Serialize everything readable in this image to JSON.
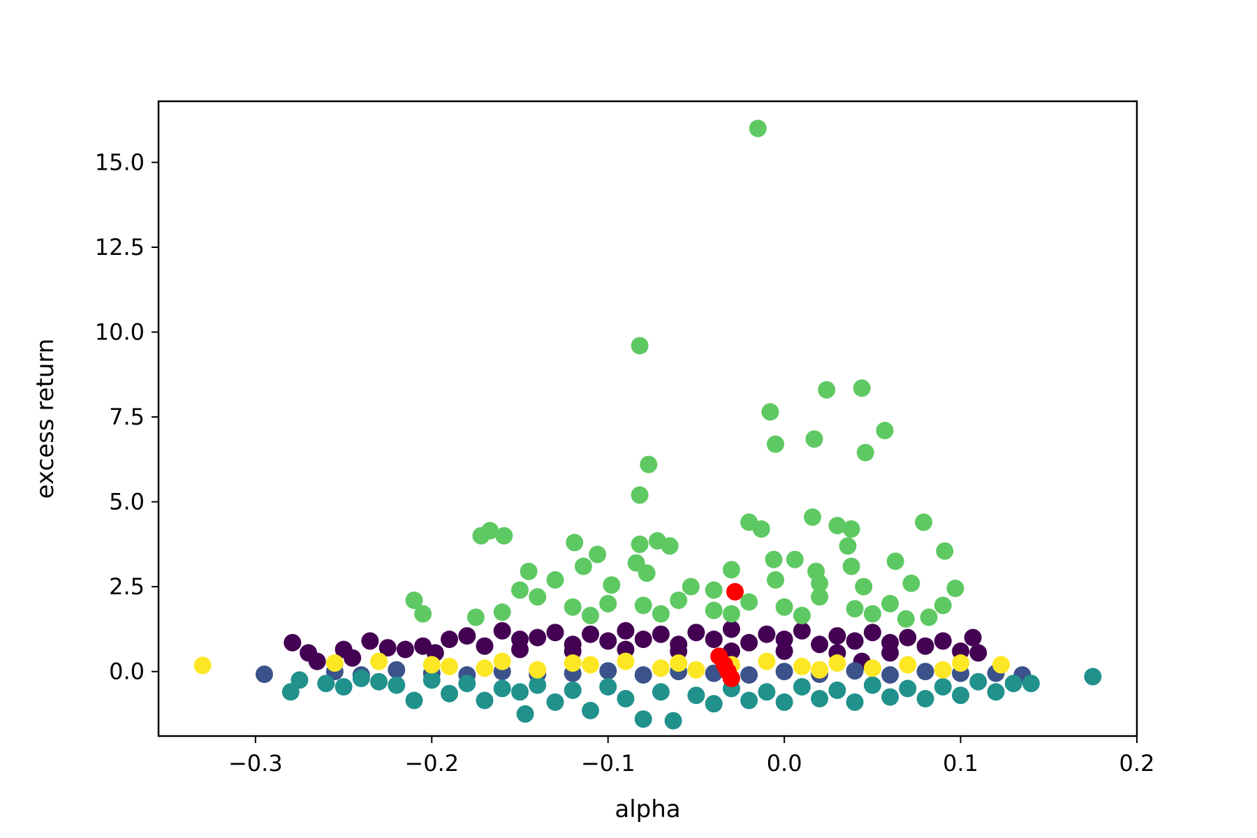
{
  "chart_data": {
    "type": "scatter",
    "title": "",
    "xlabel": "alpha",
    "ylabel": "excess return",
    "xlim": [
      -0.355,
      0.2
    ],
    "ylim": [
      -1.9,
      16.8
    ],
    "xticks": [
      -0.3,
      -0.2,
      -0.1,
      0.0,
      0.1,
      0.2
    ],
    "xtick_labels": [
      "−0.3",
      "−0.2",
      "−0.1",
      "0.0",
      "0.1",
      "0.2"
    ],
    "yticks": [
      0.0,
      2.5,
      5.0,
      7.5,
      10.0,
      12.5,
      15.0
    ],
    "ytick_labels": [
      "0.0",
      "2.5",
      "5.0",
      "7.5",
      "10.0",
      "12.5",
      "15.0"
    ],
    "grid": false,
    "legend": "none",
    "series": [
      {
        "color": "#440154",
        "points": [
          [
            -0.279,
            0.85
          ],
          [
            -0.27,
            0.55
          ],
          [
            -0.265,
            0.3
          ],
          [
            -0.25,
            0.65
          ],
          [
            -0.245,
            0.4
          ],
          [
            -0.235,
            0.9
          ],
          [
            -0.225,
            0.7
          ],
          [
            -0.215,
            0.65
          ],
          [
            -0.205,
            0.75
          ],
          [
            -0.198,
            0.55
          ],
          [
            -0.19,
            0.95
          ],
          [
            -0.18,
            1.05
          ],
          [
            -0.17,
            0.75
          ],
          [
            -0.16,
            1.2
          ],
          [
            -0.15,
            0.95
          ],
          [
            -0.14,
            1.0
          ],
          [
            -0.13,
            1.15
          ],
          [
            -0.12,
            0.8
          ],
          [
            -0.11,
            1.1
          ],
          [
            -0.1,
            0.9
          ],
          [
            -0.09,
            1.2
          ],
          [
            -0.08,
            0.95
          ],
          [
            -0.07,
            1.1
          ],
          [
            -0.06,
            0.8
          ],
          [
            -0.05,
            1.15
          ],
          [
            -0.04,
            0.95
          ],
          [
            -0.03,
            1.25
          ],
          [
            -0.02,
            0.85
          ],
          [
            -0.01,
            1.1
          ],
          [
            0.0,
            0.95
          ],
          [
            0.01,
            1.2
          ],
          [
            0.02,
            0.8
          ],
          [
            0.03,
            1.05
          ],
          [
            0.04,
            0.9
          ],
          [
            0.05,
            1.15
          ],
          [
            0.06,
            0.85
          ],
          [
            0.07,
            1.0
          ],
          [
            0.08,
            0.75
          ],
          [
            0.09,
            0.9
          ],
          [
            0.1,
            0.6
          ],
          [
            0.107,
            1.0
          ],
          [
            0.11,
            0.55
          ],
          [
            0.044,
            0.3
          ],
          [
            -0.15,
            0.65
          ],
          [
            -0.12,
            0.6
          ],
          [
            -0.09,
            0.65
          ],
          [
            -0.06,
            0.6
          ],
          [
            -0.03,
            0.6
          ],
          [
            0.0,
            0.6
          ],
          [
            0.03,
            0.55
          ],
          [
            0.06,
            0.55
          ]
        ]
      },
      {
        "color": "#3b528b",
        "points": [
          [
            -0.295,
            -0.08
          ],
          [
            -0.255,
            0.0
          ],
          [
            -0.24,
            -0.1
          ],
          [
            -0.22,
            0.05
          ],
          [
            -0.2,
            -0.05
          ],
          [
            -0.18,
            -0.1
          ],
          [
            -0.16,
            0.0
          ],
          [
            -0.14,
            -0.08
          ],
          [
            -0.12,
            -0.05
          ],
          [
            -0.1,
            0.02
          ],
          [
            -0.08,
            -0.1
          ],
          [
            -0.06,
            0.0
          ],
          [
            -0.04,
            -0.05
          ],
          [
            -0.02,
            -0.1
          ],
          [
            0.0,
            0.0
          ],
          [
            0.02,
            -0.08
          ],
          [
            0.04,
            0.02
          ],
          [
            0.06,
            -0.1
          ],
          [
            0.08,
            0.0
          ],
          [
            0.1,
            -0.05
          ],
          [
            0.12,
            -0.05
          ],
          [
            0.135,
            -0.1
          ]
        ]
      },
      {
        "color": "#21918c",
        "points": [
          [
            -0.28,
            -0.6
          ],
          [
            -0.275,
            -0.25
          ],
          [
            -0.26,
            -0.35
          ],
          [
            -0.25,
            -0.45
          ],
          [
            -0.24,
            -0.2
          ],
          [
            -0.23,
            -0.3
          ],
          [
            -0.22,
            -0.4
          ],
          [
            -0.21,
            -0.85
          ],
          [
            -0.2,
            -0.25
          ],
          [
            -0.19,
            -0.65
          ],
          [
            -0.18,
            -0.35
          ],
          [
            -0.17,
            -0.85
          ],
          [
            -0.16,
            -0.5
          ],
          [
            -0.15,
            -0.6
          ],
          [
            -0.147,
            -1.25
          ],
          [
            -0.14,
            -0.4
          ],
          [
            -0.13,
            -0.9
          ],
          [
            -0.12,
            -0.55
          ],
          [
            -0.11,
            -1.15
          ],
          [
            -0.1,
            -0.45
          ],
          [
            -0.09,
            -0.8
          ],
          [
            -0.08,
            -1.4
          ],
          [
            -0.07,
            -0.6
          ],
          [
            -0.063,
            -1.45
          ],
          [
            -0.05,
            -0.7
          ],
          [
            -0.04,
            -0.95
          ],
          [
            -0.03,
            -0.5
          ],
          [
            -0.02,
            -0.85
          ],
          [
            -0.01,
            -0.6
          ],
          [
            0.0,
            -0.9
          ],
          [
            0.01,
            -0.45
          ],
          [
            0.02,
            -0.8
          ],
          [
            0.03,
            -0.55
          ],
          [
            0.04,
            -0.9
          ],
          [
            0.05,
            -0.4
          ],
          [
            0.06,
            -0.75
          ],
          [
            0.07,
            -0.5
          ],
          [
            0.08,
            -0.8
          ],
          [
            0.09,
            -0.45
          ],
          [
            0.1,
            -0.7
          ],
          [
            0.11,
            -0.3
          ],
          [
            0.12,
            -0.6
          ],
          [
            0.13,
            -0.35
          ],
          [
            0.14,
            -0.35
          ],
          [
            0.175,
            -0.15
          ]
        ]
      },
      {
        "color": "#5ec962",
        "points": [
          [
            -0.015,
            16.0
          ],
          [
            -0.082,
            9.6
          ],
          [
            0.024,
            8.3
          ],
          [
            0.044,
            8.35
          ],
          [
            -0.008,
            7.65
          ],
          [
            0.057,
            7.1
          ],
          [
            -0.005,
            6.7
          ],
          [
            0.017,
            6.85
          ],
          [
            0.046,
            6.45
          ],
          [
            -0.077,
            6.1
          ],
          [
            -0.082,
            5.2
          ],
          [
            -0.172,
            4.0
          ],
          [
            -0.167,
            4.15
          ],
          [
            -0.159,
            4.0
          ],
          [
            -0.02,
            4.4
          ],
          [
            -0.013,
            4.2
          ],
          [
            0.016,
            4.55
          ],
          [
            0.03,
            4.3
          ],
          [
            0.038,
            4.2
          ],
          [
            0.079,
            4.4
          ],
          [
            -0.119,
            3.8
          ],
          [
            -0.082,
            3.75
          ],
          [
            -0.072,
            3.85
          ],
          [
            -0.065,
            3.7
          ],
          [
            0.036,
            3.7
          ],
          [
            0.091,
            3.55
          ],
          [
            -0.106,
            3.45
          ],
          [
            -0.114,
            3.1
          ],
          [
            -0.084,
            3.2
          ],
          [
            -0.078,
            2.9
          ],
          [
            -0.03,
            3.0
          ],
          [
            -0.006,
            3.3
          ],
          [
            0.006,
            3.3
          ],
          [
            0.018,
            2.95
          ],
          [
            0.038,
            3.1
          ],
          [
            0.063,
            3.25
          ],
          [
            -0.145,
            2.95
          ],
          [
            -0.13,
            2.7
          ],
          [
            -0.098,
            2.55
          ],
          [
            -0.053,
            2.5
          ],
          [
            -0.04,
            2.4
          ],
          [
            -0.005,
            2.7
          ],
          [
            0.02,
            2.6
          ],
          [
            0.045,
            2.5
          ],
          [
            0.072,
            2.6
          ],
          [
            0.097,
            2.45
          ],
          [
            -0.21,
            2.1
          ],
          [
            -0.205,
            1.7
          ],
          [
            -0.175,
            1.6
          ],
          [
            -0.16,
            1.75
          ],
          [
            -0.15,
            2.4
          ],
          [
            -0.14,
            2.2
          ],
          [
            -0.12,
            1.9
          ],
          [
            -0.1,
            2.0
          ],
          [
            -0.08,
            1.95
          ],
          [
            -0.06,
            2.1
          ],
          [
            -0.04,
            1.8
          ],
          [
            -0.02,
            2.05
          ],
          [
            0.0,
            1.9
          ],
          [
            0.02,
            2.2
          ],
          [
            0.04,
            1.85
          ],
          [
            0.06,
            2.0
          ],
          [
            0.069,
            1.55
          ],
          [
            0.082,
            1.6
          ],
          [
            0.09,
            1.95
          ],
          [
            -0.11,
            1.65
          ],
          [
            -0.07,
            1.7
          ],
          [
            -0.03,
            1.7
          ],
          [
            0.01,
            1.65
          ],
          [
            0.05,
            1.7
          ]
        ]
      },
      {
        "color": "#fde725",
        "points": [
          [
            -0.33,
            0.18
          ],
          [
            -0.255,
            0.25
          ],
          [
            -0.23,
            0.3
          ],
          [
            -0.2,
            0.2
          ],
          [
            -0.19,
            0.15
          ],
          [
            -0.17,
            0.1
          ],
          [
            -0.16,
            0.3
          ],
          [
            -0.14,
            0.05
          ],
          [
            -0.12,
            0.25
          ],
          [
            -0.11,
            0.2
          ],
          [
            -0.09,
            0.3
          ],
          [
            -0.07,
            0.1
          ],
          [
            -0.06,
            0.25
          ],
          [
            -0.05,
            0.05
          ],
          [
            -0.03,
            0.2
          ],
          [
            -0.01,
            0.3
          ],
          [
            0.01,
            0.15
          ],
          [
            0.02,
            0.05
          ],
          [
            0.03,
            0.25
          ],
          [
            0.05,
            0.1
          ],
          [
            0.07,
            0.2
          ],
          [
            0.09,
            0.05
          ],
          [
            0.1,
            0.25
          ],
          [
            0.123,
            0.2
          ]
        ]
      },
      {
        "color": "#ff0000",
        "points": [
          [
            -0.028,
            2.35
          ],
          [
            -0.037,
            0.45
          ],
          [
            -0.034,
            0.2
          ],
          [
            -0.032,
            0.0
          ],
          [
            -0.03,
            -0.2
          ]
        ]
      }
    ]
  }
}
